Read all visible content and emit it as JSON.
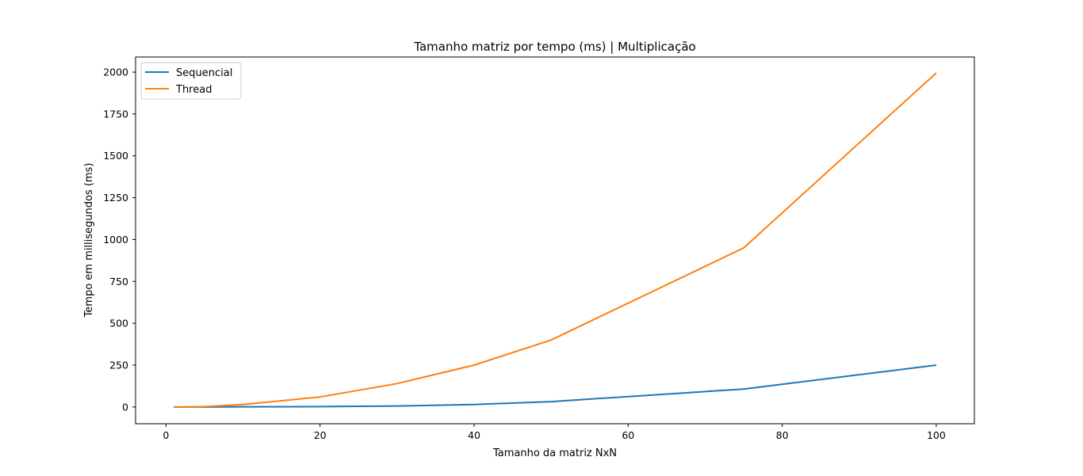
{
  "chart_data": {
    "type": "line",
    "title": "Tamanho matriz por tempo (ms) | Multiplicação",
    "xlabel": "Tamanho da matriz NxN",
    "ylabel": "Tempo em millisegundos (ms)",
    "xlim": [
      -3.95,
      104.95
    ],
    "ylim": [
      -100,
      2090
    ],
    "xticks": [
      0,
      20,
      40,
      60,
      80,
      100
    ],
    "yticks": [
      0,
      250,
      500,
      750,
      1000,
      1250,
      1500,
      1750,
      2000
    ],
    "grid": false,
    "legend_position": "upper-left",
    "series": [
      {
        "name": "Sequencial",
        "color": "#1f77b4",
        "x": [
          1,
          5,
          10,
          20,
          30,
          40,
          50,
          75,
          100
        ],
        "y": [
          0,
          0,
          1,
          2,
          6,
          15,
          32,
          107,
          250
        ]
      },
      {
        "name": "Thread",
        "color": "#ff7f0e",
        "x": [
          1,
          5,
          10,
          20,
          30,
          40,
          50,
          75,
          100
        ],
        "y": [
          0,
          2,
          15,
          60,
          140,
          250,
          400,
          950,
          1995
        ]
      }
    ]
  }
}
